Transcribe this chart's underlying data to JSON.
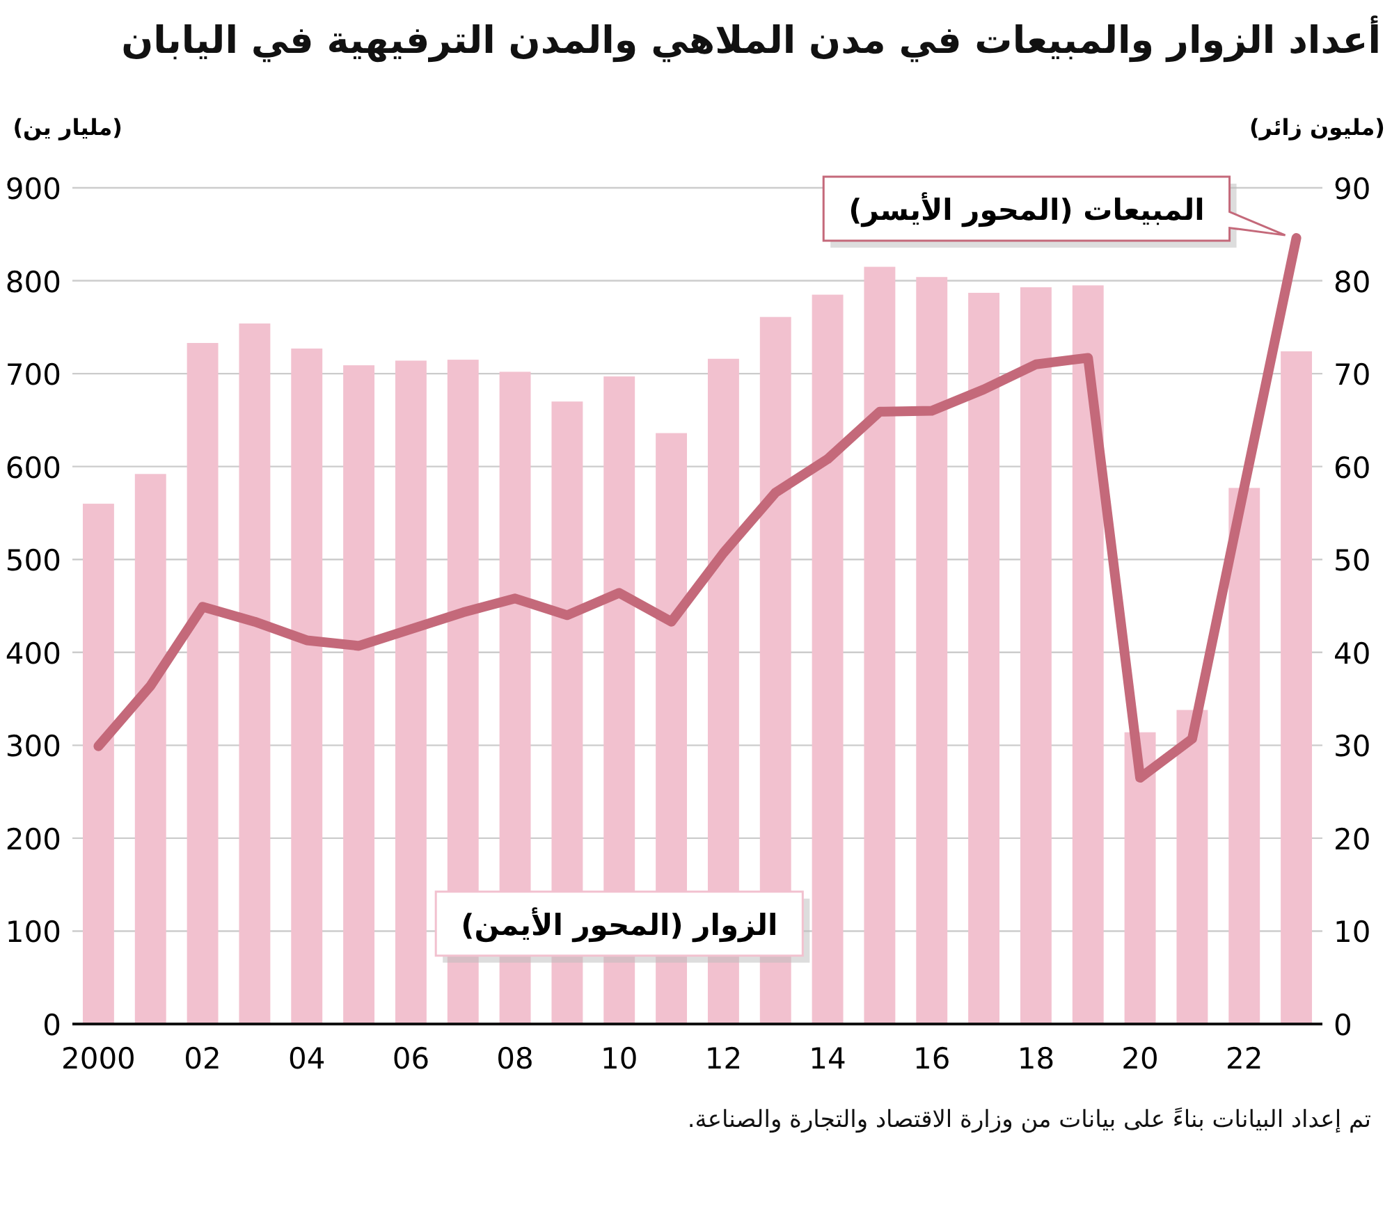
{
  "chart_data": {
    "type": "bar",
    "title": "أعداد الزوار والمبيعات في مدن الملاهي والمدن الترفيهية في اليابان",
    "ylabel": "(مليار ين)",
    "y2label": "(مليون زائر)",
    "categories": [
      "2000",
      null,
      "02",
      null,
      "04",
      null,
      "06",
      null,
      "08",
      null,
      "10",
      null,
      "12",
      null,
      "14",
      null,
      "16",
      null,
      "18",
      null,
      "20",
      null,
      "22",
      null
    ],
    "series": [
      {
        "name": "الزوار (المحور الأيمن)",
        "axis": "y2",
        "color": "#f2c1cf",
        "values": [
          56.0,
          59.2,
          73.3,
          75.4,
          72.7,
          70.9,
          71.4,
          71.5,
          70.2,
          67.0,
          69.7,
          63.6,
          71.6,
          76.1,
          78.5,
          81.5,
          80.4,
          78.7,
          79.3,
          79.5,
          31.4,
          33.8,
          57.7,
          72.4
        ]
      },
      {
        "name": "المبيعات (المحور الأيسر)",
        "type": "line",
        "axis": "y",
        "color": "#c4697a",
        "values": [
          299,
          364,
          449,
          433,
          413,
          407,
          425,
          443,
          458,
          440,
          464,
          433,
          507,
          572,
          608,
          659,
          660,
          683,
          710,
          717,
          265,
          307,
          578,
          846
        ]
      }
    ],
    "ylim": [
      0,
      900
    ],
    "yticks": [
      0,
      100,
      200,
      300,
      400,
      500,
      600,
      700,
      800,
      900
    ],
    "y2lim": [
      0,
      90
    ],
    "y2ticks": [
      0,
      10,
      20,
      30,
      40,
      50,
      60,
      70,
      80,
      90
    ],
    "grid": "y",
    "annotations": [
      "تم إعداد البيانات بناءً على بيانات من وزارة الاقتصاد والتجارة والصناعة."
    ]
  }
}
